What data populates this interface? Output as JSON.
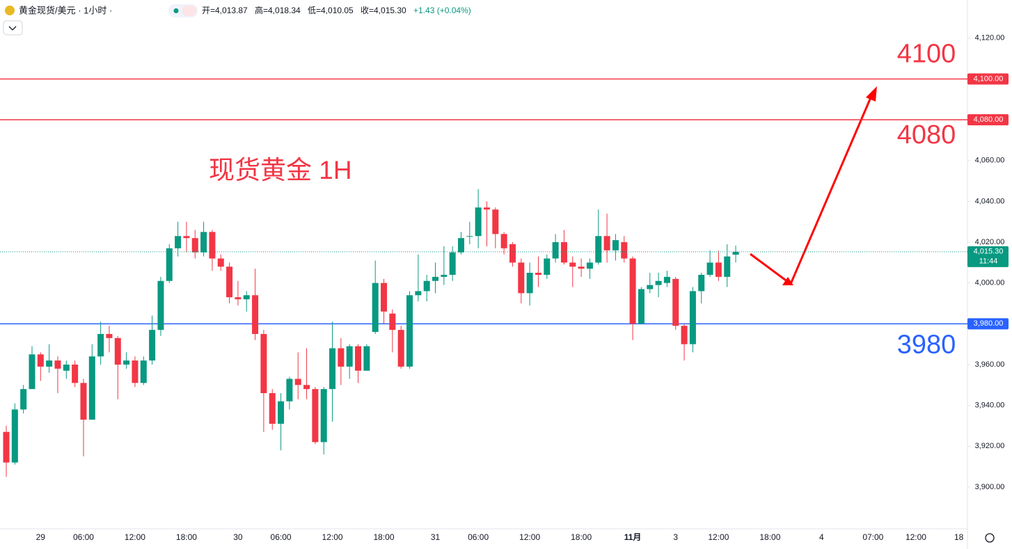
{
  "chart_data": {
    "type": "candlestick",
    "title": "黄金现货/美元 · 1小时 ·",
    "ohlc_labels": [
      "开=4,013.87",
      "高=4,018.34",
      "低=4,010.05",
      "收=4,015.30",
      "+1.43 (+0.04%)"
    ],
    "annotation": "现货黄金 1H",
    "categories": [
      null,
      null,
      null,
      null,
      "29",
      null,
      null,
      null,
      null,
      "06:00",
      null,
      null,
      null,
      null,
      null,
      "12:00",
      null,
      null,
      null,
      null,
      null,
      "18:00",
      null,
      null,
      null,
      null,
      null,
      "30",
      null,
      null,
      null,
      null,
      "06:00",
      null,
      null,
      null,
      null,
      null,
      "12:00",
      null,
      null,
      null,
      null,
      null,
      "18:00",
      null,
      null,
      null,
      null,
      null,
      "31",
      null,
      null,
      null,
      null,
      "06:00",
      null,
      null,
      null,
      null,
      null,
      "12:00",
      null,
      null,
      null,
      null,
      null,
      "18:00",
      null,
      null,
      null,
      null,
      null,
      "11月",
      null,
      null,
      null,
      null,
      "3",
      null,
      null,
      null,
      null,
      "12:00",
      null,
      null,
      null,
      null,
      null,
      "18:00",
      null,
      null,
      null,
      null,
      null,
      "4",
      null,
      null,
      null,
      null,
      null,
      "07:00",
      null,
      null,
      null,
      null,
      "12:00",
      null,
      null,
      null,
      null,
      "18"
    ],
    "open": [
      3927,
      3912,
      3938,
      3948,
      3965,
      3959,
      3962,
      3957,
      3960,
      3951,
      3933,
      3964,
      3975,
      3973,
      3960,
      3962,
      3951,
      3962,
      3977,
      4001,
      4017,
      4023,
      4022,
      4015,
      4025,
      4012,
      4008,
      3993,
      3992,
      3994,
      3975,
      3946,
      3931,
      3942,
      3953,
      3950,
      3948,
      3922,
      3948,
      3968,
      3959,
      3969,
      3957,
      3976,
      4000,
      3985,
      3977,
      3959,
      3994,
      3996,
      4001,
      4003,
      4004,
      4015,
      4023,
      4023,
      4037,
      4036,
      4024,
      4019,
      4010,
      3995,
      4005,
      4004,
      4012,
      4020,
      4010,
      4008,
      4007,
      4010,
      4023,
      4016,
      4020,
      4012,
      3980,
      3997,
      3999,
      4000,
      4002,
      3979,
      3970,
      3996,
      4004,
      4010,
      4003,
      4013.87,
      null,
      null,
      null,
      null,
      null,
      null,
      null,
      null,
      null,
      null,
      null,
      null,
      null,
      null,
      null,
      null,
      null,
      null,
      null,
      null,
      null,
      null,
      null,
      null,
      null,
      null
    ],
    "high": [
      3930,
      3941,
      3950,
      3969,
      3966,
      3970,
      3964,
      3962,
      3962,
      3953,
      3970,
      3981,
      3979,
      3974,
      3966,
      3964,
      3964,
      3984,
      4003,
      4019,
      4030,
      4030,
      4026,
      4030,
      4026,
      4014,
      4010,
      4001,
      3996,
      4007,
      3977,
      3948,
      3946,
      3954,
      3966,
      3968,
      3949,
      3949,
      3981,
      3973,
      3970,
      3970,
      3970,
      4011,
      4002,
      3987,
      3979,
      3996,
      4014,
      4004,
      4010,
      4018,
      4018,
      4025,
      4030,
      4046,
      4040,
      4037,
      4025,
      4020,
      4012,
      4010,
      4013,
      4014,
      4024,
      4026,
      4013,
      4012,
      4012,
      4036,
      4034,
      4024,
      4023,
      4013,
      3998,
      4005,
      4005,
      4006,
      4003,
      3980,
      3998,
      4005,
      4016,
      4016,
      4019,
      4018.34,
      null,
      null,
      null,
      null,
      null,
      null,
      null,
      null,
      null,
      null,
      null,
      null,
      null,
      null,
      null,
      null,
      null,
      null,
      null,
      null,
      null,
      null,
      null,
      null,
      null,
      null
    ],
    "low": [
      3905,
      3911,
      3936,
      3948,
      3952,
      3956,
      3946,
      3953,
      3949,
      3915,
      3933,
      3960,
      3966,
      3943,
      3958,
      3949,
      3950,
      3960,
      3974,
      4000,
      4013,
      4015,
      4012,
      4013,
      4006,
      4006,
      3990,
      3989,
      3986,
      3972,
      3927,
      3928,
      3918,
      3938,
      3943,
      3943,
      3921,
      3916,
      3932,
      3950,
      3953,
      3951,
      3957,
      3975,
      3980,
      3966,
      3958,
      3958,
      3991,
      3991,
      3995,
      3999,
      4001,
      4014,
      4019,
      4017,
      4018,
      4017,
      4014,
      4008,
      3990,
      3989,
      3998,
      4002,
      4010,
      4009,
      3998,
      4003,
      4002,
      4009,
      4010,
      4011,
      4010,
      3972,
      3980,
      3995,
      3993,
      3998,
      3977,
      3962,
      3966,
      3990,
      4003,
      4001,
      3998,
      4010.05,
      null,
      null,
      null,
      null,
      null,
      null,
      null,
      null,
      null,
      null,
      null,
      null,
      null,
      null,
      null,
      null,
      null,
      null,
      null,
      null,
      null,
      null,
      null,
      null,
      null,
      null
    ],
    "close": [
      3912,
      3938,
      3948,
      3965,
      3959,
      3962,
      3958,
      3960,
      3951,
      3933,
      3964,
      3975,
      3973,
      3960,
      3962,
      3951,
      3962,
      3977,
      4001,
      4017,
      4023,
      4022,
      4015,
      4025,
      4012,
      4008,
      3993,
      3992,
      3994,
      3975,
      3946,
      3931,
      3942,
      3953,
      3950,
      3948,
      3922,
      3948,
      3968,
      3959,
      3969,
      3957,
      3969,
      4000,
      3986,
      3977,
      3959,
      3994,
      3996,
      4001,
      4003,
      4004,
      4015,
      4022,
      4023,
      4037,
      4036,
      4024,
      4017,
      4010,
      3995,
      4005,
      4004,
      4012,
      4020,
      4010,
      4008,
      4007,
      4010,
      4023,
      4016,
      4021,
      4012,
      3980,
      3997,
      3999,
      4001,
      4003,
      3979,
      3970,
      3996,
      4004,
      4010,
      4003,
      4013,
      4015.3,
      null,
      null,
      null,
      null,
      null,
      null,
      null,
      null,
      null,
      null,
      null,
      null,
      null,
      null,
      null,
      null,
      null,
      null,
      null,
      null,
      null,
      null,
      null,
      null,
      null,
      null
    ],
    "up_color": "#089981",
    "down_color": "#f23645",
    "ylim": [
      3879.5,
      4138.7
    ],
    "yticks": [
      {
        "value": 3900,
        "label": "3,900.00"
      },
      {
        "value": 3920,
        "label": "3,920.00"
      },
      {
        "value": 3940,
        "label": "3,940.00"
      },
      {
        "value": 3960,
        "label": "3,960.00"
      },
      {
        "value": 3980,
        "label": "3,980.00"
      },
      {
        "value": 4000,
        "label": "4,000.00"
      },
      {
        "value": 4020,
        "label": "4,020.00"
      },
      {
        "value": 4040,
        "label": "4,040.00"
      },
      {
        "value": 4060,
        "label": "4,060.00"
      },
      {
        "value": 4080,
        "label": "4,080.00"
      },
      {
        "value": 4100,
        "label": "4,100.00"
      },
      {
        "value": 4120,
        "label": "4,120.00"
      }
    ],
    "levels": [
      {
        "value": 4100,
        "label": "4,100.00",
        "text": "4100",
        "color": "#f23645"
      },
      {
        "value": 4080,
        "label": "4,080.00",
        "text": "4080",
        "color": "#f23645"
      },
      {
        "value": 3980,
        "label": "3,980.00",
        "text": "3980",
        "color": "#2962ff"
      }
    ],
    "price_label": "4,015.30",
    "time_label": "11:44"
  }
}
